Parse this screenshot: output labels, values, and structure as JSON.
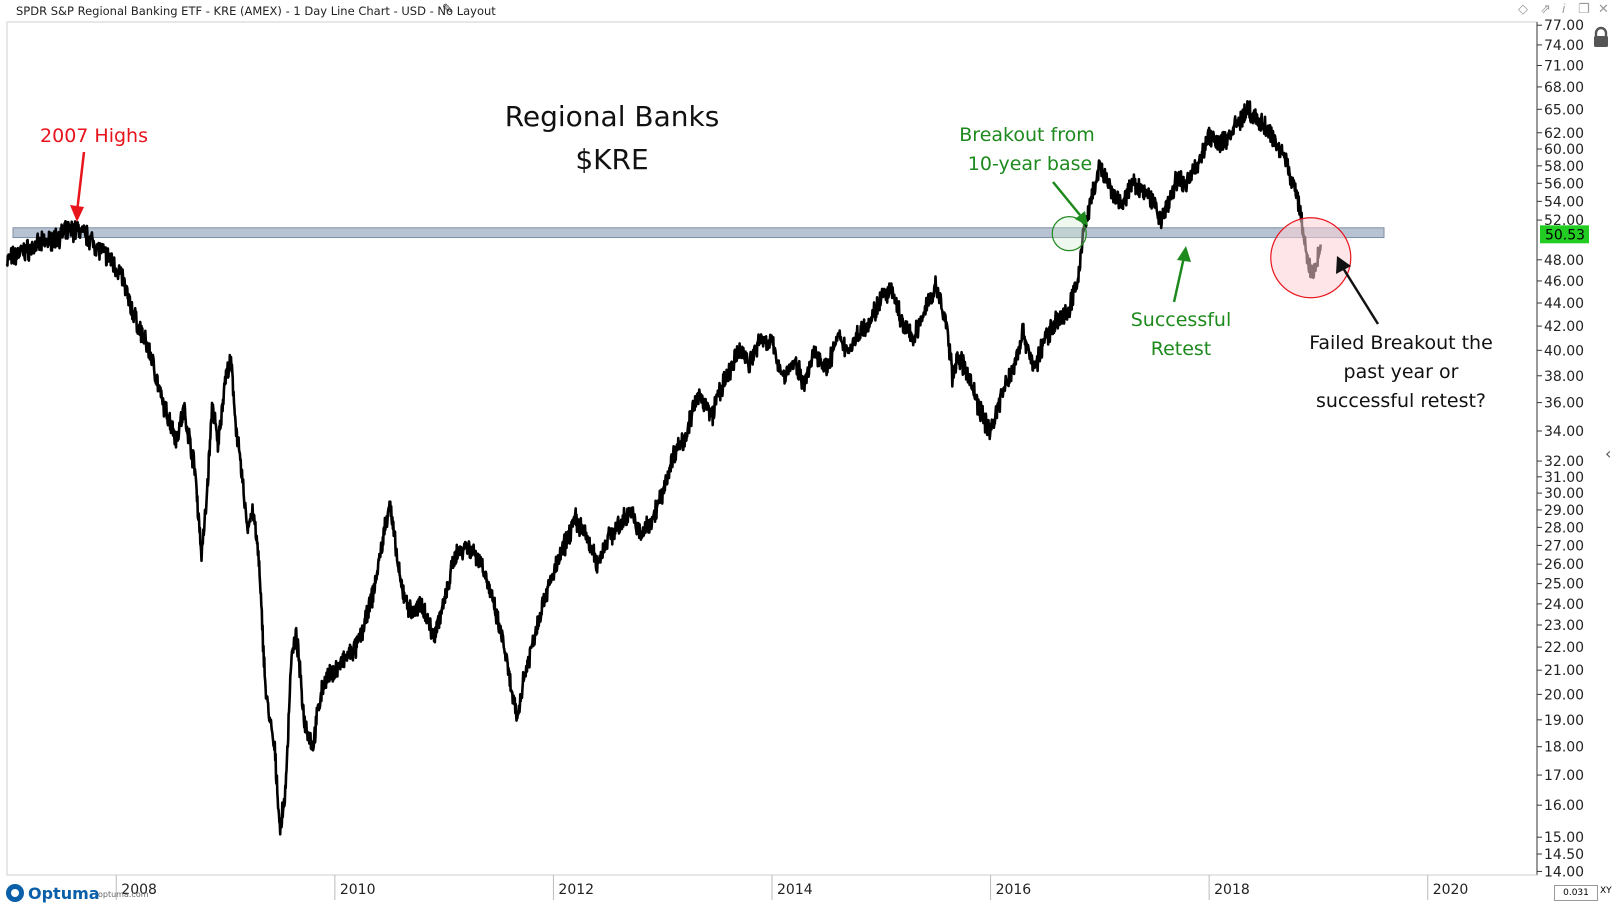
{
  "header": {
    "title": "SPDR S&P Regional Banking ETF - KRE (AMEX) - 1 Day Line Chart - USD - No Layout",
    "edit_icon": "pencil-icon",
    "toolbar_icons": [
      "diamond-icon",
      "pin-icon",
      "info-icon",
      "restore-icon",
      "close-icon"
    ]
  },
  "footer": {
    "brand": "Optuma",
    "brand_url": "optuma.com",
    "zoom_value": "0.031",
    "zoom_mode": "XY"
  },
  "colors": {
    "price_line": "#000000",
    "resistance_band": "#b7c3d3",
    "red": "#e8141c",
    "green": "#1e8a1e",
    "current_price_bg": "#22cc22",
    "red_circle_fill": "#fbd0d5"
  },
  "chart_data": {
    "type": "line",
    "title": "Regional Banks",
    "subtitle": "$KRE",
    "y_scale": "log",
    "ylim": [
      13.9,
      77.5
    ],
    "xlim": [
      2007.0,
      2021.0
    ],
    "y_ticks": [
      "77.00",
      "74.00",
      "71.00",
      "68.00",
      "65.00",
      "62.00",
      "60.00",
      "58.00",
      "56.00",
      "54.00",
      "52.00",
      "48.00",
      "46.00",
      "44.00",
      "42.00",
      "40.00",
      "38.00",
      "36.00",
      "34.00",
      "32.00",
      "31.00",
      "30.00",
      "29.00",
      "28.00",
      "27.00",
      "26.00",
      "25.00",
      "24.00",
      "23.00",
      "22.00",
      "21.00",
      "20.00",
      "19.00",
      "18.00",
      "17.00",
      "16.00",
      "15.00",
      "14.50",
      "14.00"
    ],
    "x_ticks": [
      "2008",
      "2010",
      "2012",
      "2014",
      "2016",
      "2018",
      "2020"
    ],
    "current_price": "50.53",
    "resistance_band": [
      50.2,
      51.2
    ],
    "resistance_band_end": 2019.6,
    "series": [
      {
        "x": [
          2007.0,
          2007.15,
          2007.3,
          2007.45,
          2007.55,
          2007.65,
          2007.75,
          2007.85,
          2007.95,
          2008.05,
          2008.12,
          2008.2,
          2008.3,
          2008.35,
          2008.42,
          2008.5,
          2008.55,
          2008.62,
          2008.72,
          2008.78,
          2008.82,
          2008.88,
          2008.93,
          2009.0,
          2009.05,
          2009.1,
          2009.15,
          2009.2,
          2009.25,
          2009.3,
          2009.37,
          2009.45,
          2009.5,
          2009.55,
          2009.6,
          2009.65,
          2009.72,
          2009.8,
          2009.85,
          2009.9,
          2010.0,
          2010.1,
          2010.2,
          2010.3,
          2010.35,
          2010.4,
          2010.5,
          2010.6,
          2010.7,
          2010.8,
          2010.9,
          2011.0,
          2011.1,
          2011.2,
          2011.3,
          2011.35,
          2011.45,
          2011.55,
          2011.62,
          2011.67,
          2011.72,
          2011.8,
          2011.9,
          2012.0,
          2012.1,
          2012.2,
          2012.3,
          2012.4,
          2012.5,
          2012.6,
          2012.7,
          2012.8,
          2012.9,
          2013.0,
          2013.1,
          2013.2,
          2013.3,
          2013.35,
          2013.45,
          2013.5,
          2013.6,
          2013.7,
          2013.8,
          2013.9,
          2014.0,
          2014.1,
          2014.2,
          2014.3,
          2014.4,
          2014.5,
          2014.6,
          2014.7,
          2014.8,
          2014.9,
          2015.0,
          2015.1,
          2015.2,
          2015.3,
          2015.4,
          2015.5,
          2015.6,
          2015.65,
          2015.7,
          2015.8,
          2015.9,
          2016.0,
          2016.1,
          2016.2,
          2016.3,
          2016.4,
          2016.5,
          2016.6,
          2016.7,
          2016.8,
          2016.85,
          2016.9,
          2016.95,
          2017.0,
          2017.1,
          2017.2,
          2017.3,
          2017.4,
          2017.5,
          2017.55,
          2017.6,
          2017.7,
          2017.8,
          2017.9,
          2018.0,
          2018.1,
          2018.2,
          2018.3,
          2018.35,
          2018.4,
          2018.5,
          2018.6,
          2018.7,
          2018.75,
          2018.8,
          2018.85,
          2018.9,
          2018.95,
          2019.0,
          2019.02
        ],
        "y": [
          48.0,
          48.8,
          49.5,
          50.2,
          50.8,
          51.0,
          50.2,
          49.0,
          48.0,
          46.5,
          44.0,
          42.0,
          40.0,
          38.5,
          36.0,
          34.5,
          33.5,
          35.5,
          31.5,
          26.5,
          29.0,
          36.0,
          33.0,
          38.0,
          39.0,
          34.0,
          31.0,
          28.0,
          29.0,
          26.5,
          20.0,
          17.8,
          15.2,
          16.5,
          21.5,
          22.5,
          19.0,
          18.0,
          19.5,
          20.5,
          21.0,
          21.5,
          22.0,
          23.5,
          24.5,
          26.0,
          29.5,
          25.0,
          23.5,
          24.0,
          22.5,
          24.0,
          26.5,
          27.0,
          26.5,
          26.0,
          24.0,
          22.0,
          20.0,
          19.0,
          20.5,
          22.0,
          24.0,
          25.5,
          27.0,
          28.5,
          27.5,
          26.0,
          27.5,
          28.0,
          29.0,
          27.5,
          28.5,
          30.0,
          32.5,
          33.5,
          36.0,
          36.5,
          35.0,
          36.5,
          38.0,
          40.0,
          39.0,
          41.0,
          40.5,
          38.0,
          39.0,
          37.5,
          40.0,
          38.5,
          41.0,
          40.0,
          41.5,
          42.5,
          44.5,
          45.0,
          42.0,
          41.0,
          43.5,
          45.5,
          42.0,
          38.0,
          39.5,
          38.0,
          35.5,
          34.0,
          36.5,
          38.5,
          41.5,
          38.5,
          41.0,
          42.5,
          43.0,
          46.0,
          51.0,
          53.0,
          55.5,
          58.0,
          55.0,
          53.5,
          56.0,
          55.0,
          54.0,
          52.0,
          53.0,
          56.5,
          56.0,
          58.5,
          61.5,
          60.5,
          62.0,
          64.0,
          65.0,
          64.0,
          63.0,
          61.0,
          59.0,
          56.5,
          55.0,
          51.5,
          48.0,
          46.5,
          48.5,
          49.5
        ]
      }
    ],
    "annotations": [
      {
        "id": "highs-2007",
        "text": [
          "2007 Highs"
        ],
        "color": "red"
      },
      {
        "id": "breakout",
        "text": [
          "Breakout from",
          "10-year base"
        ],
        "color": "green"
      },
      {
        "id": "retest",
        "text": [
          "Successful",
          "Retest"
        ],
        "color": "green"
      },
      {
        "id": "failed",
        "text": [
          "Failed Breakout the",
          "past year or",
          "successful retest?"
        ],
        "color": "black"
      }
    ]
  }
}
